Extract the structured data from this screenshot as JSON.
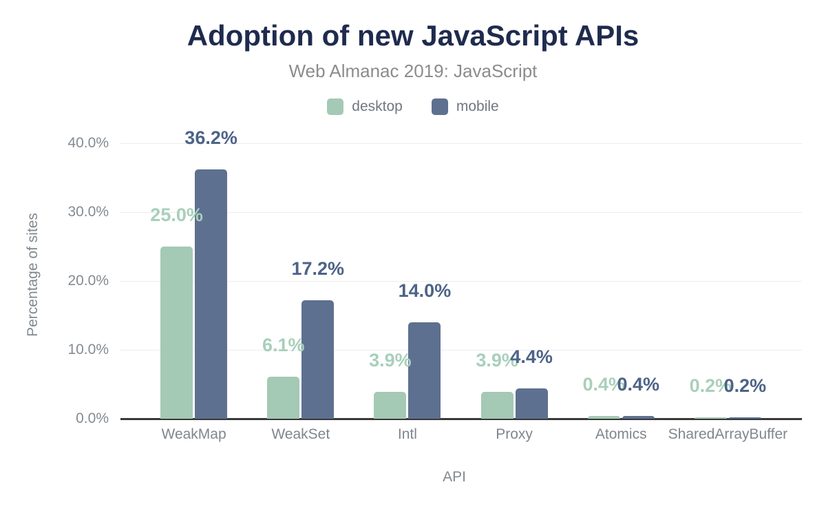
{
  "title": "Adoption of new JavaScript APIs",
  "subtitle": "Web Almanac 2019: JavaScript",
  "legend": [
    {
      "label": "desktop",
      "color": "#a4c9b5"
    },
    {
      "label": "mobile",
      "color": "#5e7090"
    }
  ],
  "colors": {
    "title": "#1f2b4e",
    "subtitle": "#8c8c8c",
    "axis_text": "#848b92",
    "gridline": "#ececec",
    "axis_line": "#383838"
  },
  "chart_data": {
    "type": "bar",
    "title": "Adoption of new JavaScript APIs",
    "subtitle": "Web Almanac 2019: JavaScript",
    "categories": [
      "WeakMap",
      "WeakSet",
      "Intl",
      "Proxy",
      "Atomics",
      "SharedArrayBuffer"
    ],
    "series": [
      {
        "name": "desktop",
        "color": "#a4c9b5",
        "label_color": "#a9cfbb",
        "values": [
          25.0,
          6.1,
          3.9,
          3.9,
          0.4,
          0.2
        ],
        "labels": [
          "25.0%",
          "6.1%",
          "3.9%",
          "3.9%",
          "0.4%",
          "0.2%"
        ]
      },
      {
        "name": "mobile",
        "color": "#5e7090",
        "label_color": "#4d6387",
        "values": [
          36.2,
          17.2,
          14.0,
          4.4,
          0.4,
          0.2
        ],
        "labels": [
          "36.2%",
          "17.2%",
          "14.0%",
          "4.4%",
          "0.4%",
          "0.2%"
        ]
      }
    ],
    "xlabel": "API",
    "ylabel": "Percentage of sites",
    "y_ticks": [
      "0.0%",
      "10.0%",
      "20.0%",
      "30.0%",
      "40.0%"
    ],
    "y_tick_values": [
      0,
      10,
      20,
      30,
      40
    ],
    "ylim": [
      0,
      40
    ],
    "grid": true,
    "legend_position": "top",
    "value_labels_shown": true
  }
}
